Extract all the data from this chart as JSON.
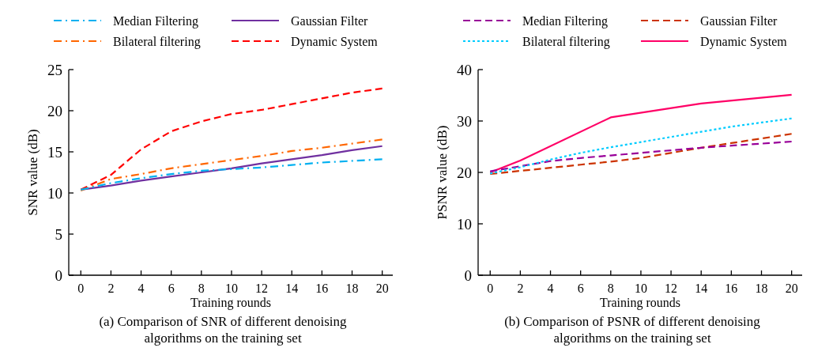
{
  "chart_data": [
    {
      "type": "line",
      "xlabel": "Training rounds",
      "ylabel": "SNR value (dB)",
      "annotations": [
        "(a) Comparison of SNR of different denoising",
        "algorithms on the training set"
      ],
      "x": [
        0,
        2,
        4,
        6,
        8,
        10,
        12,
        14,
        16,
        18,
        20
      ],
      "xlim": [
        -0.8,
        20.7
      ],
      "xticks": [
        0,
        2,
        4,
        6,
        8,
        10,
        12,
        14,
        16,
        18,
        20
      ],
      "ylim": [
        0,
        25
      ],
      "yticks": [
        0,
        5,
        10,
        15,
        20,
        25
      ],
      "legend": "top",
      "grid": false,
      "series": [
        {
          "name": "Median Filtering",
          "color": "#00b0f0",
          "line_style": "dashdot",
          "values": [
            10.4,
            11.2,
            11.8,
            12.3,
            12.7,
            12.9,
            13.1,
            13.4,
            13.7,
            13.9,
            14.1
          ]
        },
        {
          "name": "Gaussian Filter",
          "color": "#7030a0",
          "line_style": "solid",
          "values": [
            10.4,
            10.9,
            11.5,
            12,
            12.5,
            13,
            13.6,
            14.1,
            14.6,
            15.2,
            15.7
          ]
        },
        {
          "name": "Bilateral filtering",
          "color": "#ff6600",
          "line_style": "dashdot",
          "values": [
            10.3,
            11.7,
            12.3,
            13,
            13.5,
            14,
            14.5,
            15.1,
            15.5,
            16,
            16.5
          ]
        },
        {
          "name": "Dynamic System",
          "color": "#ff0000",
          "line_style": "dashed",
          "values": [
            10.4,
            12.2,
            15.3,
            17.5,
            18.7,
            19.6,
            20.1,
            20.8,
            21.5,
            22.2,
            22.7
          ]
        }
      ]
    },
    {
      "type": "line",
      "xlabel": "Training rounds",
      "ylabel": "PSNR value (dB)",
      "annotations": [
        "(b) Comparison of PSNR of different denoising",
        "algorithms on the training set"
      ],
      "x": [
        0,
        2,
        4,
        6,
        8,
        10,
        12,
        14,
        16,
        18,
        20
      ],
      "xlim": [
        -0.8,
        20.7
      ],
      "xticks": [
        0,
        2,
        4,
        6,
        8,
        10,
        12,
        14,
        16,
        18,
        20
      ],
      "ylim": [
        0,
        40
      ],
      "yticks": [
        0,
        10,
        20,
        30,
        40
      ],
      "legend": "top",
      "grid": false,
      "series": [
        {
          "name": "Median Filtering",
          "color": "#990099",
          "line_style": "dashed",
          "values": [
            20.2,
            21.2,
            22.2,
            22.8,
            23.3,
            23.8,
            24.3,
            24.8,
            25.2,
            25.6,
            26
          ]
        },
        {
          "name": "Gaussian Filter",
          "color": "#cc3300",
          "line_style": "dashed",
          "values": [
            19.7,
            20.3,
            20.9,
            21.5,
            22.1,
            22.8,
            23.8,
            24.8,
            25.7,
            26.6,
            27.5
          ]
        },
        {
          "name": "Bilateral filtering",
          "color": "#00ccff",
          "line_style": "dotted",
          "values": [
            19.8,
            21,
            22.5,
            23.8,
            24.9,
            25.9,
            26.9,
            27.9,
            28.9,
            29.7,
            30.5
          ]
        },
        {
          "name": "Dynamic System",
          "color": "#ff0066",
          "line_style": "solid",
          "x": [
            0,
            2,
            8,
            14,
            20
          ],
          "values": [
            20,
            22.3,
            30.7,
            33.4,
            35.1
          ]
        }
      ]
    }
  ]
}
